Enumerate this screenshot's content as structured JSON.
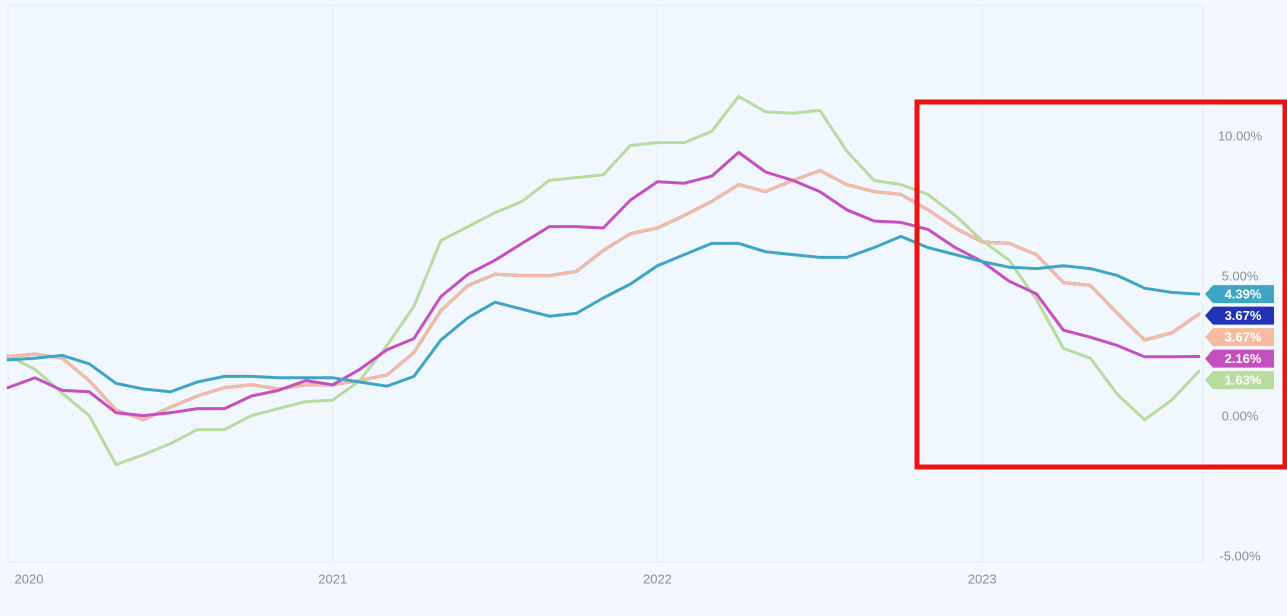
{
  "chart_data": {
    "type": "line",
    "x": [
      2020,
      2020.083,
      2020.167,
      2020.25,
      2020.333,
      2020.417,
      2020.5,
      2020.583,
      2020.667,
      2020.75,
      2020.833,
      2020.917,
      2021,
      2021.083,
      2021.167,
      2021.25,
      2021.333,
      2021.417,
      2021.5,
      2021.583,
      2021.667,
      2021.75,
      2021.833,
      2021.917,
      2022,
      2022.083,
      2022.167,
      2022.25,
      2022.333,
      2022.417,
      2022.5,
      2022.583,
      2022.667,
      2022.75,
      2022.833,
      2022.917,
      2023,
      2023.083,
      2023.167,
      2023.25,
      2023.333,
      2023.417,
      2023.5,
      2023.583,
      2023.667
    ],
    "xlim": [
      2020,
      2023.68
    ],
    "xticks": [
      2020,
      2021,
      2022,
      2023
    ],
    "ylim": [
      -5.2,
      14.7
    ],
    "yticks": [
      {
        "value": -5,
        "label": "-5.00%"
      },
      {
        "value": 0,
        "label": "0.00%"
      },
      {
        "value": 5,
        "label": "5.00%"
      },
      {
        "value": 10,
        "label": "10.00%"
      }
    ],
    "grid": true,
    "series": [
      {
        "color": "#2233b8",
        "values": [
          2.15,
          2.25,
          2.1,
          1.3,
          0.25,
          -0.1,
          0.35,
          0.75,
          1.05,
          1.15,
          1.0,
          1.15,
          1.15,
          1.3,
          1.5,
          2.3,
          3.8,
          4.7,
          5.1,
          5.05,
          5.05,
          5.2,
          5.95,
          6.55,
          6.75,
          7.2,
          7.7,
          8.3,
          8.05,
          8.45,
          8.8,
          8.3,
          8.05,
          7.95,
          7.4,
          6.75,
          6.25,
          6.2,
          5.8,
          4.8,
          4.7,
          3.7,
          2.75,
          3.0,
          3.67
        ],
        "value_labels": [
          null,
          null,
          null,
          null,
          null,
          null,
          null,
          null,
          null,
          null,
          null,
          null,
          null,
          null,
          null,
          null,
          null,
          null,
          null,
          null,
          null,
          null,
          null,
          null,
          null,
          null,
          null,
          null,
          null,
          null,
          null,
          null,
          null,
          null,
          null,
          null,
          null,
          null,
          null,
          null,
          null,
          null,
          null,
          null,
          "3.67%"
        ]
      },
      {
        "color": "#b7dc9d",
        "values": [
          2.2,
          1.7,
          0.85,
          0.05,
          -1.7,
          -1.35,
          -0.95,
          -0.45,
          -0.45,
          0.05,
          0.3,
          0.55,
          0.6,
          1.3,
          2.55,
          3.95,
          6.3,
          6.8,
          7.3,
          7.7,
          8.45,
          8.55,
          8.65,
          9.7,
          9.8,
          9.8,
          10.2,
          11.45,
          10.9,
          10.85,
          10.95,
          9.5,
          8.45,
          8.3,
          7.95,
          7.2,
          6.3,
          5.6,
          4.2,
          2.45,
          2.1,
          0.8,
          -0.1,
          0.6,
          1.63
        ],
        "value_labels": [
          null,
          null,
          null,
          null,
          null,
          null,
          null,
          null,
          null,
          null,
          null,
          null,
          null,
          null,
          null,
          null,
          null,
          null,
          null,
          null,
          null,
          null,
          null,
          null,
          null,
          null,
          null,
          null,
          null,
          null,
          null,
          null,
          null,
          null,
          null,
          null,
          null,
          null,
          null,
          null,
          null,
          null,
          null,
          null,
          "1.63%"
        ]
      },
      {
        "color": "#f6bc9f",
        "values": [
          2.15,
          2.25,
          2.1,
          1.3,
          0.25,
          -0.1,
          0.35,
          0.75,
          1.05,
          1.15,
          1.0,
          1.15,
          1.15,
          1.3,
          1.5,
          2.3,
          3.8,
          4.7,
          5.1,
          5.05,
          5.05,
          5.2,
          5.95,
          6.55,
          6.75,
          7.2,
          7.7,
          8.3,
          8.05,
          8.45,
          8.8,
          8.3,
          8.05,
          7.95,
          7.4,
          6.75,
          6.25,
          6.2,
          5.8,
          4.8,
          4.7,
          3.7,
          2.75,
          3.0,
          3.67
        ],
        "value_labels": [
          null,
          null,
          null,
          null,
          null,
          null,
          null,
          null,
          null,
          null,
          null,
          null,
          null,
          null,
          null,
          null,
          null,
          null,
          null,
          null,
          null,
          null,
          null,
          null,
          null,
          null,
          null,
          null,
          null,
          null,
          null,
          null,
          null,
          null,
          null,
          null,
          null,
          null,
          null,
          null,
          null,
          null,
          null,
          null,
          "3.67%"
        ]
      },
      {
        "color": "#c64fbf",
        "values": [
          1.05,
          1.4,
          0.95,
          0.9,
          0.15,
          0.05,
          0.15,
          0.3,
          0.3,
          0.75,
          0.95,
          1.3,
          1.15,
          1.7,
          2.4,
          2.8,
          4.3,
          5.1,
          5.6,
          6.2,
          6.8,
          6.8,
          6.75,
          7.75,
          8.4,
          8.35,
          8.6,
          9.45,
          8.75,
          8.45,
          8.05,
          7.4,
          7.0,
          6.95,
          6.7,
          6.05,
          5.55,
          4.85,
          4.4,
          3.1,
          2.85,
          2.55,
          2.15,
          2.15,
          2.16
        ],
        "value_labels": [
          null,
          null,
          null,
          null,
          null,
          null,
          null,
          null,
          null,
          null,
          null,
          null,
          null,
          null,
          null,
          null,
          null,
          null,
          null,
          null,
          null,
          null,
          null,
          null,
          null,
          null,
          null,
          null,
          null,
          null,
          null,
          null,
          null,
          null,
          null,
          null,
          null,
          null,
          null,
          null,
          null,
          null,
          null,
          null,
          "2.16%"
        ]
      },
      {
        "color": "#3ea6c4",
        "values": [
          2.04,
          2.1,
          2.2,
          1.9,
          1.2,
          1.0,
          0.9,
          1.25,
          1.45,
          1.45,
          1.4,
          1.4,
          1.4,
          1.25,
          1.1,
          1.45,
          2.75,
          3.55,
          4.1,
          3.85,
          3.6,
          3.7,
          4.25,
          4.75,
          5.4,
          5.8,
          6.2,
          6.2,
          5.9,
          5.8,
          5.7,
          5.7,
          6.05,
          6.45,
          6.05,
          5.8,
          5.55,
          5.35,
          5.3,
          5.4,
          5.3,
          5.05,
          4.6,
          4.45,
          4.39
        ],
        "value_labels": [
          null,
          null,
          null,
          null,
          null,
          null,
          null,
          null,
          null,
          null,
          null,
          null,
          null,
          null,
          null,
          null,
          null,
          null,
          null,
          null,
          null,
          null,
          null,
          null,
          null,
          null,
          null,
          null,
          null,
          null,
          null,
          null,
          null,
          null,
          null,
          null,
          null,
          null,
          null,
          null,
          null,
          null,
          null,
          null,
          "4.39%"
        ]
      }
    ]
  }
}
